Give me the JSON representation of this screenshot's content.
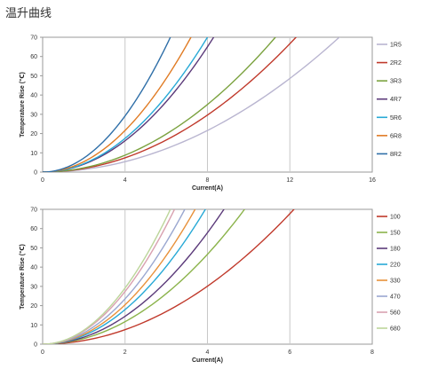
{
  "page": {
    "title": "温升曲线"
  },
  "chart_data": [
    {
      "type": "line",
      "xlabel": "Current(A)",
      "ylabel": "Temperature Rise (℃)",
      "xlim": [
        0,
        16
      ],
      "ylim": [
        0,
        70
      ],
      "xticks": [
        0,
        4,
        8,
        12,
        16
      ],
      "yticks": [
        0,
        10,
        20,
        30,
        40,
        50,
        60,
        70
      ],
      "grid": "vertical",
      "legend": "right",
      "series": [
        {
          "name": "1R5",
          "color": "#b9b5d0",
          "x_at_70": 14.4
        },
        {
          "name": "2R2",
          "color": "#c0392b",
          "x_at_70": 12.3
        },
        {
          "name": "3R3",
          "color": "#7ba23f",
          "x_at_70": 11.3
        },
        {
          "name": "4R7",
          "color": "#5b3a7a",
          "x_at_70": 8.3
        },
        {
          "name": "5R6",
          "color": "#27a9d6",
          "x_at_70": 8.0
        },
        {
          "name": "6R8",
          "color": "#e07b24",
          "x_at_70": 7.2
        },
        {
          "name": "8R2",
          "color": "#2f6fa8",
          "x_at_70": 6.2
        }
      ]
    },
    {
      "type": "line",
      "xlabel": "Current(A)",
      "ylabel": "Temperature Rise (℃)",
      "xlim": [
        0,
        8
      ],
      "ylim": [
        0,
        70
      ],
      "xticks": [
        0,
        2,
        4,
        6,
        8
      ],
      "yticks": [
        0,
        10,
        20,
        30,
        40,
        50,
        60,
        70
      ],
      "grid": "vertical",
      "legend": "right",
      "series": [
        {
          "name": "100",
          "color": "#c0392b",
          "x_at_70": 6.1
        },
        {
          "name": "150",
          "color": "#8bb34b",
          "x_at_70": 4.9
        },
        {
          "name": "180",
          "color": "#5b3a7a",
          "x_at_70": 4.4
        },
        {
          "name": "220",
          "color": "#27a9d6",
          "x_at_70": 3.95
        },
        {
          "name": "330",
          "color": "#e8913a",
          "x_at_70": 3.7
        },
        {
          "name": "470",
          "color": "#9aa7d0",
          "x_at_70": 3.45
        },
        {
          "name": "560",
          "color": "#d9a1b0",
          "x_at_70": 3.2
        },
        {
          "name": "680",
          "color": "#bcd59a",
          "x_at_70": 3.1
        }
      ]
    }
  ]
}
